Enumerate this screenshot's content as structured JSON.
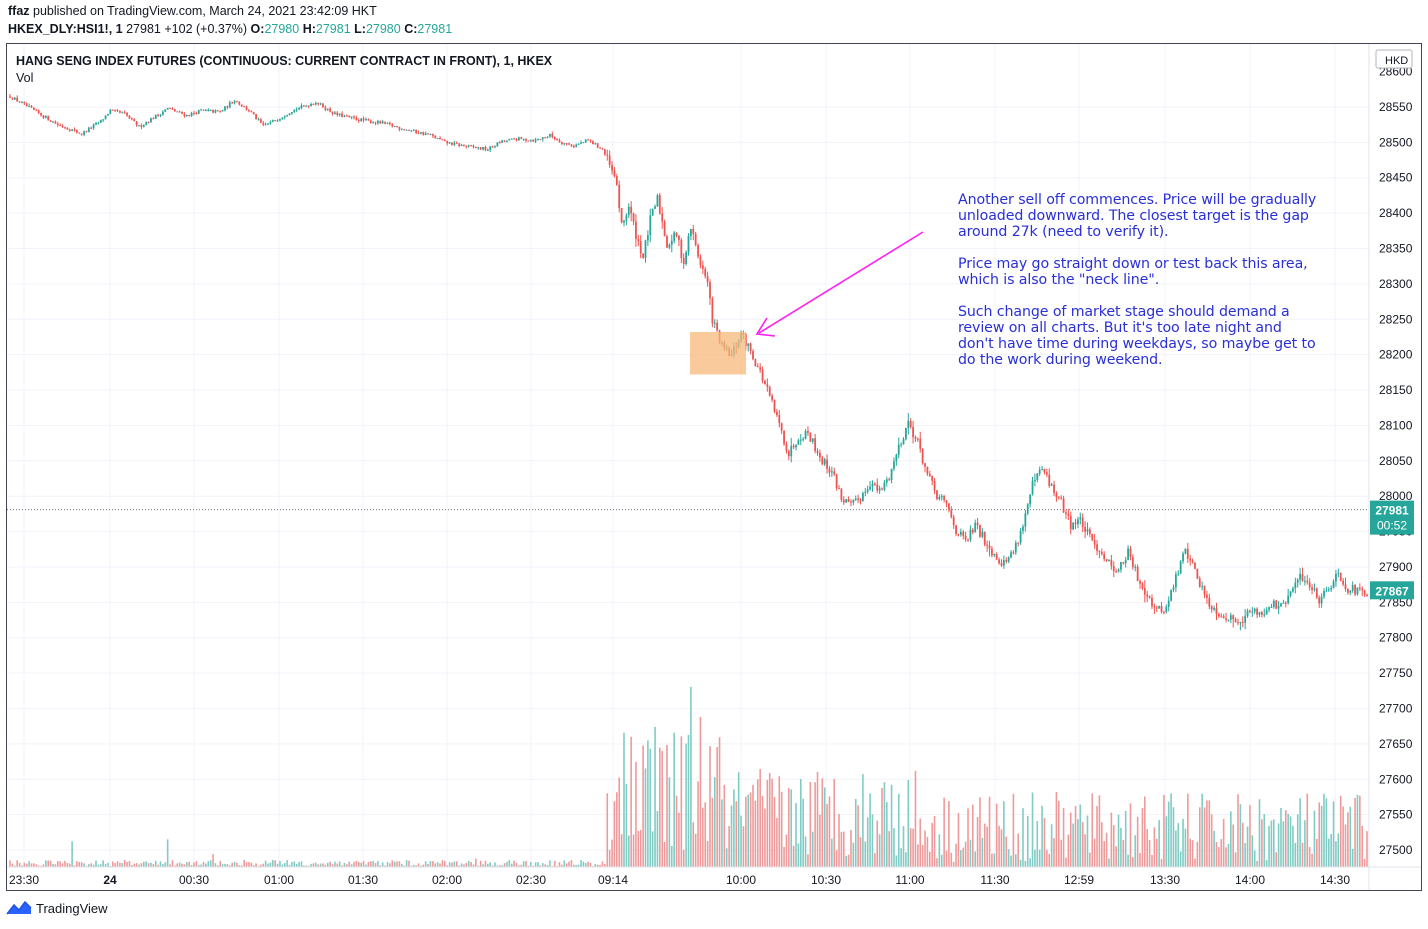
{
  "header": {
    "publisher": "ffaz",
    "published_text": "published on TradingView.com, March 24, 2021 23:42:09 HKT",
    "symbol": "HKEX_DLY:HSI1!, 1",
    "last": "27981",
    "change": "+102 (+0.37%)",
    "o_label": "O:",
    "o_value": "27980",
    "h_label": "H:",
    "h_value": "27981",
    "l_label": "L:",
    "l_value": "27980",
    "c_label": "C:",
    "c_value": "27981"
  },
  "chart_data": {
    "type": "candlestick",
    "title": "HANG SENG INDEX FUTURES (CONTINUOUS: CURRENT CONTRACT IN FRONT), 1, HKEX",
    "volume_label": "Vol",
    "currency": "HKD",
    "x_tick_labels": [
      "23:30",
      "24",
      "00:30",
      "01:00",
      "01:30",
      "02:00",
      "02:30",
      "09:14",
      "10:00",
      "10:30",
      "11:00",
      "11:30",
      "12:59",
      "13:30",
      "14:00",
      "14:30"
    ],
    "y_tick_labels": [
      28550,
      28500,
      28450,
      28400,
      28350,
      28300,
      28250,
      28200,
      28150,
      28100,
      28050,
      28000,
      27950,
      27900,
      27850,
      27800,
      27750,
      27700,
      27650,
      27600,
      27550,
      27500
    ],
    "y_top_partial_label": "28600",
    "ylim": [
      27476,
      28639
    ],
    "price_path": [
      [
        0,
        28565
      ],
      [
        10,
        28545
      ],
      [
        20,
        28525
      ],
      [
        30,
        28512
      ],
      [
        38,
        28530
      ],
      [
        42,
        28545
      ],
      [
        48,
        28540
      ],
      [
        54,
        28522
      ],
      [
        60,
        28535
      ],
      [
        66,
        28548
      ],
      [
        74,
        28538
      ],
      [
        80,
        28545
      ],
      [
        88,
        28543
      ],
      [
        94,
        28560
      ],
      [
        100,
        28545
      ],
      [
        106,
        28523
      ],
      [
        112,
        28533
      ],
      [
        118,
        28545
      ],
      [
        128,
        28557
      ],
      [
        136,
        28540
      ],
      [
        146,
        28532
      ],
      [
        156,
        28527
      ],
      [
        166,
        28518
      ],
      [
        176,
        28510
      ],
      [
        182,
        28500
      ],
      [
        190,
        28495
      ],
      [
        200,
        28490
      ],
      [
        205,
        28500
      ],
      [
        212,
        28505
      ],
      [
        220,
        28503
      ],
      [
        226,
        28510
      ],
      [
        231,
        28500
      ],
      [
        236,
        28495
      ],
      [
        242,
        28503
      ],
      [
        248,
        28490
      ],
      [
        250,
        28475
      ],
      [
        254,
        28440
      ],
      [
        256,
        28380
      ],
      [
        259,
        28410
      ],
      [
        262,
        28370
      ],
      [
        265,
        28338
      ],
      [
        268,
        28390
      ],
      [
        271,
        28420
      ],
      [
        275,
        28355
      ],
      [
        279,
        28370
      ],
      [
        282,
        28330
      ],
      [
        285,
        28380
      ],
      [
        288,
        28340
      ],
      [
        292,
        28300
      ],
      [
        294,
        28250
      ],
      [
        298,
        28210
      ],
      [
        302,
        28198
      ],
      [
        306,
        28230
      ],
      [
        310,
        28205
      ],
      [
        314,
        28175
      ],
      [
        318,
        28140
      ],
      [
        322,
        28100
      ],
      [
        326,
        28060
      ],
      [
        330,
        28085
      ],
      [
        334,
        28090
      ],
      [
        337,
        28070
      ],
      [
        340,
        28050
      ],
      [
        344,
        28035
      ],
      [
        348,
        27998
      ],
      [
        352,
        27985
      ],
      [
        356,
        27998
      ],
      [
        360,
        28020
      ],
      [
        364,
        28005
      ],
      [
        368,
        28028
      ],
      [
        372,
        28070
      ],
      [
        376,
        28105
      ],
      [
        380,
        28075
      ],
      [
        384,
        28030
      ],
      [
        388,
        28000
      ],
      [
        392,
        27988
      ],
      [
        396,
        27952
      ],
      [
        400,
        27935
      ],
      [
        404,
        27958
      ],
      [
        408,
        27938
      ],
      [
        412,
        27918
      ],
      [
        416,
        27905
      ],
      [
        420,
        27922
      ],
      [
        424,
        27960
      ],
      [
        428,
        28015
      ],
      [
        432,
        28038
      ],
      [
        436,
        28012
      ],
      [
        440,
        27990
      ],
      [
        444,
        27960
      ],
      [
        448,
        27966
      ],
      [
        452,
        27940
      ],
      [
        456,
        27925
      ],
      [
        460,
        27905
      ],
      [
        464,
        27895
      ],
      [
        468,
        27920
      ],
      [
        472,
        27885
      ],
      [
        476,
        27862
      ],
      [
        480,
        27838
      ],
      [
        484,
        27842
      ],
      [
        488,
        27885
      ],
      [
        492,
        27925
      ],
      [
        496,
        27895
      ],
      [
        500,
        27860
      ],
      [
        504,
        27840
      ],
      [
        508,
        27832
      ],
      [
        512,
        27825
      ],
      [
        516,
        27828
      ],
      [
        520,
        27838
      ],
      [
        524,
        27835
      ],
      [
        528,
        27848
      ],
      [
        532,
        27842
      ],
      [
        536,
        27862
      ],
      [
        540,
        27888
      ],
      [
        544,
        27875
      ],
      [
        548,
        27855
      ],
      [
        552,
        27872
      ],
      [
        556,
        27890
      ],
      [
        560,
        27870
      ],
      [
        564,
        27865
      ],
      [
        568,
        27862
      ]
    ],
    "open_price": 28565,
    "current_price": 27867,
    "last_price_label": "27981",
    "last_price_timer": "00:52",
    "current_price_label": "27867",
    "annotation_box": {
      "price_low": 28172,
      "price_high": 28232
    },
    "annotation_text": [
      "Another sell off commences. Price will be gradually unloaded downward. The closest target is the gap around 27k (need to verify it).",
      "Price may go straight down or test back this area, which is also the \"neck line\".",
      "Such change of market stage should demand a review on all charts. But it's too late night and don't have time during weekdays, so maybe get to do the work during weekend."
    ]
  },
  "colors": {
    "up": "#26a69a",
    "down": "#ef5350",
    "arrow": "#ff1ff0",
    "highlight": "#f7b87a",
    "annotation_text": "#2a2fd6",
    "price_label_bg": "#26a69a",
    "grid": "#f0f3fa"
  },
  "footer": {
    "brand": "TradingView"
  }
}
